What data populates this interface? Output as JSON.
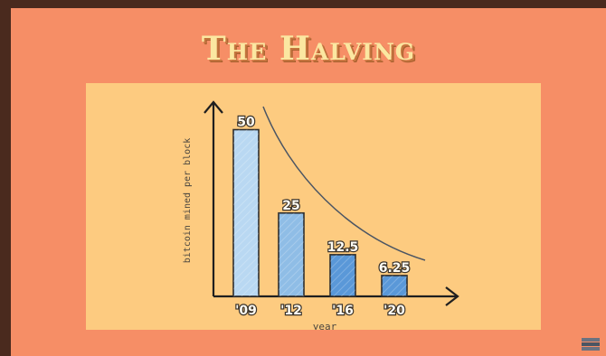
{
  "slide": {
    "title": "The Halving",
    "logo_icon": "stacked-books-icon",
    "background_color": "#f68e66",
    "panel_color": "#fdcb80"
  },
  "chart_data": {
    "type": "bar",
    "categories": [
      "'09",
      "'12",
      "'16",
      "'20"
    ],
    "values": [
      50,
      25,
      12.5,
      6.25
    ],
    "value_labels": [
      "50",
      "25",
      "12.5",
      "6.25"
    ],
    "xlabel": "year",
    "ylabel": "bitcoin mined per block",
    "ylim": [
      0,
      58
    ],
    "grid": false,
    "legend": "none",
    "annotation": "decay-curve",
    "bar_color": "#8fbde6",
    "bar_color_dark": "#5a98d8"
  }
}
